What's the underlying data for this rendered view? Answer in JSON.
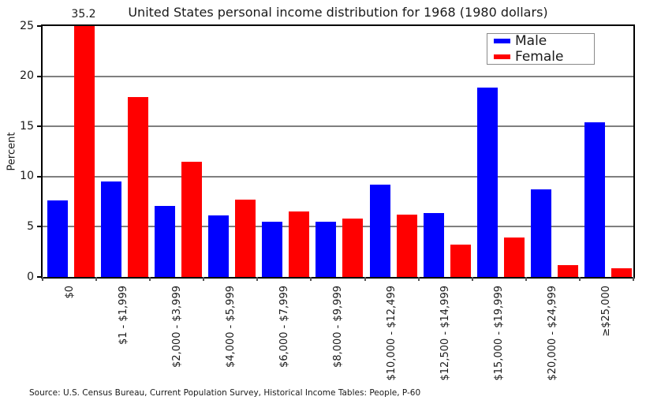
{
  "figure": {
    "title": "United States personal income distribution for 1968 (1980 dollars)",
    "y_axis_label": "Percent",
    "bar_label": "35.2",
    "source_note": "Source: U.S. Census Bureau, Current Population Survey, Historical Income Tables: People, P-60"
  },
  "legend": {
    "items": [
      {
        "label": "Male",
        "color": "#0000ff"
      },
      {
        "label": "Female",
        "color": "#ff0000"
      }
    ]
  },
  "chart_data": {
    "type": "bar",
    "title": "United States personal income distribution for 1968 (1980 dollars)",
    "xlabel": "",
    "ylabel": "Percent",
    "ylim": [
      0,
      25
    ],
    "yticks": [
      0,
      5,
      10,
      15,
      20,
      25
    ],
    "grid": true,
    "gridline_color": "#7f7f7f",
    "legend_position": "upper right",
    "categories": [
      "$0",
      "$1 - $1,999",
      "$2,000 - $3,999",
      "$4,000 - $5,999",
      "$6,000 - $7,999",
      "$8,000 - $9,999",
      "$10,000 - $12,499",
      "$12,500 - $14,999",
      "$15,000 - $19,999",
      "$20,000 - $24,999",
      "≥$25,000"
    ],
    "series": [
      {
        "name": "Male",
        "color": "#0000ff",
        "values": [
          7.6,
          9.5,
          7.1,
          6.1,
          5.5,
          5.5,
          9.2,
          6.4,
          18.9,
          8.7,
          15.4
        ]
      },
      {
        "name": "Female",
        "color": "#ff0000",
        "values": [
          35.2,
          17.9,
          11.5,
          7.7,
          6.5,
          5.8,
          6.2,
          3.2,
          3.9,
          1.2,
          0.9
        ]
      }
    ],
    "annotations": [
      {
        "text": "35.2",
        "note": "Female $0 bar exceeds axis maximum of 25 and is clipped; its value is printed above the plot"
      }
    ]
  }
}
